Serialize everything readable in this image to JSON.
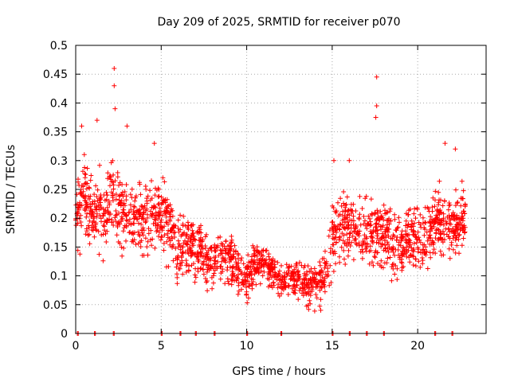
{
  "chart_data": {
    "type": "scatter",
    "title": "Day 209 of 2025, SRMTID for receiver p070",
    "xlabel": "GPS time / hours",
    "ylabel": "SRMTID / TECUs",
    "xlim": [
      0,
      24
    ],
    "ylim": [
      0,
      0.5
    ],
    "grid": true,
    "marker": "+",
    "color": "#ff0000",
    "x_ticks": [
      0,
      5,
      10,
      15,
      20
    ],
    "x_tick_labels": [
      "0",
      "5",
      "10",
      "15",
      "20"
    ],
    "y_ticks": [
      0,
      0.05,
      0.1,
      0.15,
      0.2,
      0.25,
      0.3,
      0.35,
      0.4,
      0.45,
      0.5
    ],
    "y_tick_labels": [
      "0",
      "0.05",
      "0.1",
      "0.15",
      "0.2",
      "0.25",
      "0.3",
      "0.35",
      "0.4",
      "0.45",
      "0.5"
    ],
    "series": [
      {
        "name": "SRMTID",
        "trend": {
          "x": [
            0,
            0.5,
            1,
            1.5,
            2,
            2.5,
            3,
            3.5,
            4,
            4.5,
            5,
            5.5,
            6,
            6.5,
            7,
            7.5,
            8,
            8.5,
            9,
            9.5,
            10,
            10.5,
            11,
            11.5,
            12,
            12.5,
            13,
            13.5,
            14,
            14.5,
            15,
            15.5,
            16,
            16.5,
            17,
            17.5,
            18,
            18.5,
            19,
            19.5,
            20,
            20.5,
            21,
            21.5,
            22,
            22.5,
            22.8
          ],
          "y": [
            0.2,
            0.24,
            0.22,
            0.2,
            0.24,
            0.22,
            0.21,
            0.2,
            0.19,
            0.2,
            0.22,
            0.18,
            0.15,
            0.16,
            0.15,
            0.13,
            0.12,
            0.13,
            0.13,
            0.11,
            0.09,
            0.13,
            0.12,
            0.11,
            0.09,
            0.1,
            0.09,
            0.08,
            0.09,
            0.1,
            0.16,
            0.18,
            0.19,
            0.18,
            0.17,
            0.18,
            0.17,
            0.16,
            0.15,
            0.17,
            0.17,
            0.16,
            0.2,
            0.19,
            0.18,
            0.2,
            0.2
          ]
        },
        "spread": {
          "x": [
            0,
            2,
            4,
            6,
            8,
            10,
            12,
            14,
            15,
            18,
            21,
            22.8
          ],
          "y": [
            0.06,
            0.06,
            0.05,
            0.05,
            0.04,
            0.035,
            0.025,
            0.03,
            0.05,
            0.05,
            0.05,
            0.05
          ]
        },
        "highlights": [
          {
            "x": 2.25,
            "y": 0.46
          },
          {
            "x": 2.25,
            "y": 0.43
          },
          {
            "x": 2.3,
            "y": 0.39
          },
          {
            "x": 17.6,
            "y": 0.445
          },
          {
            "x": 17.6,
            "y": 0.395
          },
          {
            "x": 17.55,
            "y": 0.375
          },
          {
            "x": 1.25,
            "y": 0.37
          },
          {
            "x": 0.35,
            "y": 0.36
          },
          {
            "x": 3.0,
            "y": 0.36
          },
          {
            "x": 4.6,
            "y": 0.33
          },
          {
            "x": 21.6,
            "y": 0.33
          },
          {
            "x": 15.1,
            "y": 0.3
          },
          {
            "x": 16.0,
            "y": 0.3
          },
          {
            "x": 22.2,
            "y": 0.32
          }
        ],
        "zero_markers_x": [
          0.1,
          1.1,
          2.2,
          5.0,
          6.1,
          7.0,
          8.1,
          10.0,
          12.0,
          15.0,
          16.0,
          17.0,
          18.0,
          21.0,
          22.0
        ],
        "n_points": 2000
      }
    ]
  }
}
